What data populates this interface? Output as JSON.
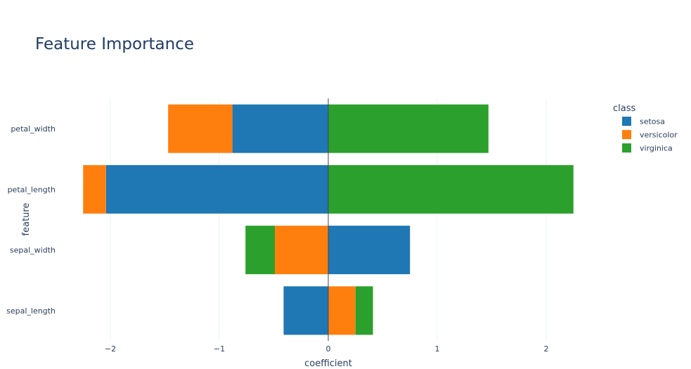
{
  "chart_data": {
    "type": "bar",
    "orientation": "horizontal",
    "barmode": "relative",
    "title": "Feature Importance",
    "xlabel": "coefficient",
    "ylabel": "feature",
    "xlim": [
      -2.5,
      3.0
    ],
    "xticks": [
      -2,
      -1,
      0,
      1,
      2
    ],
    "xtick_labels": [
      "−2",
      "−1",
      "0",
      "1",
      "2"
    ],
    "grid": true,
    "categories": [
      "petal_width",
      "petal_length",
      "sepal_width",
      "sepal_length"
    ],
    "series": [
      {
        "name": "setosa",
        "color": "#1f77b4",
        "values": [
          -0.88,
          -2.04,
          0.75,
          -0.41
        ]
      },
      {
        "name": "versicolor",
        "color": "#ff7f0e",
        "values": [
          -0.59,
          -0.21,
          -0.49,
          0.25
        ]
      },
      {
        "name": "virginica",
        "color": "#2ca02c",
        "values": [
          1.47,
          2.25,
          -0.27,
          0.16
        ]
      }
    ],
    "legend_title": "class",
    "legend_position": "right"
  }
}
